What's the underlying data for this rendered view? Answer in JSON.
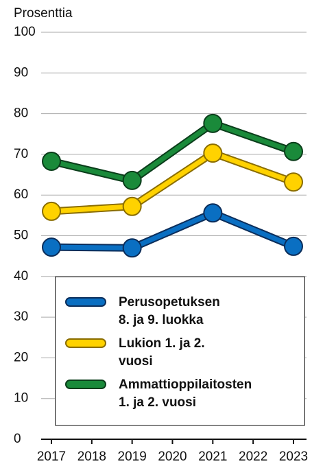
{
  "chart_data": {
    "type": "line",
    "y_label": "Prosenttia",
    "x": [
      2017,
      2019,
      2021,
      2023
    ],
    "xlim": [
      2017,
      2023
    ],
    "xticks": [
      2017,
      2018,
      2019,
      2020,
      2021,
      2022,
      2023
    ],
    "ylim": [
      0,
      100
    ],
    "yticks": [
      0,
      10,
      20,
      30,
      40,
      50,
      60,
      70,
      80,
      90,
      100
    ],
    "grid": true,
    "series": [
      {
        "name": "Perusopetuksen\n8. ja 9. luokka",
        "color": "#0a6fc2",
        "edge": "#0b2d5a",
        "values": [
          47.2,
          47.0,
          55.6,
          47.4
        ]
      },
      {
        "name": "Lukion 1. ja 2.\nvuosi",
        "color": "#ffd200",
        "edge": "#8a6d00",
        "values": [
          56.0,
          57.2,
          70.3,
          63.2
        ]
      },
      {
        "name": "Ammattioppilaitosten\n1. ja 2. vuosi",
        "color": "#1a8a3a",
        "edge": "#0a3d1a",
        "values": [
          68.3,
          63.6,
          77.6,
          70.7
        ]
      }
    ]
  }
}
